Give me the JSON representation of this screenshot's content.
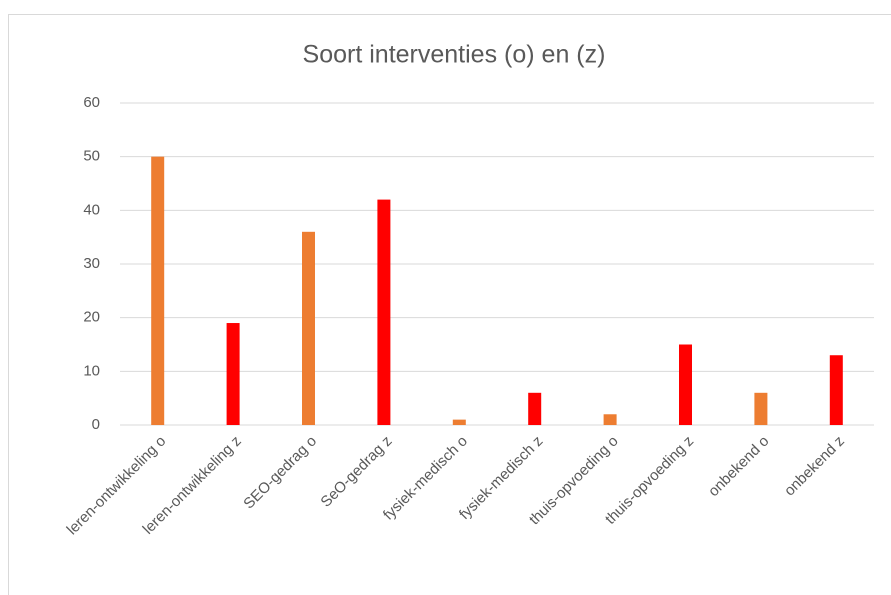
{
  "chart_data": {
    "type": "bar",
    "title": "Soort interventies (o) en (z)",
    "categories": [
      "leren-ontwikkeling o",
      "leren-ontwikkeling z",
      "SEO-gedrag o",
      "SeO-gedrag z",
      "fysiek-medisch o",
      "fysiek-medisch z",
      "thuis-opvoeding o",
      "thuis-opvoeding z",
      "onbekend o",
      "onbekend z"
    ],
    "values": [
      50,
      19,
      36,
      42,
      1,
      6,
      2,
      15,
      6,
      13
    ],
    "colors": [
      "#ED7D31",
      "#FF0000",
      "#ED7D31",
      "#FF0000",
      "#ED7D31",
      "#FF0000",
      "#ED7D31",
      "#FF0000",
      "#ED7D31",
      "#FF0000"
    ],
    "ylim": [
      0,
      60
    ],
    "yticks": [
      0,
      10,
      20,
      30,
      40,
      50,
      60
    ],
    "grid": true
  }
}
